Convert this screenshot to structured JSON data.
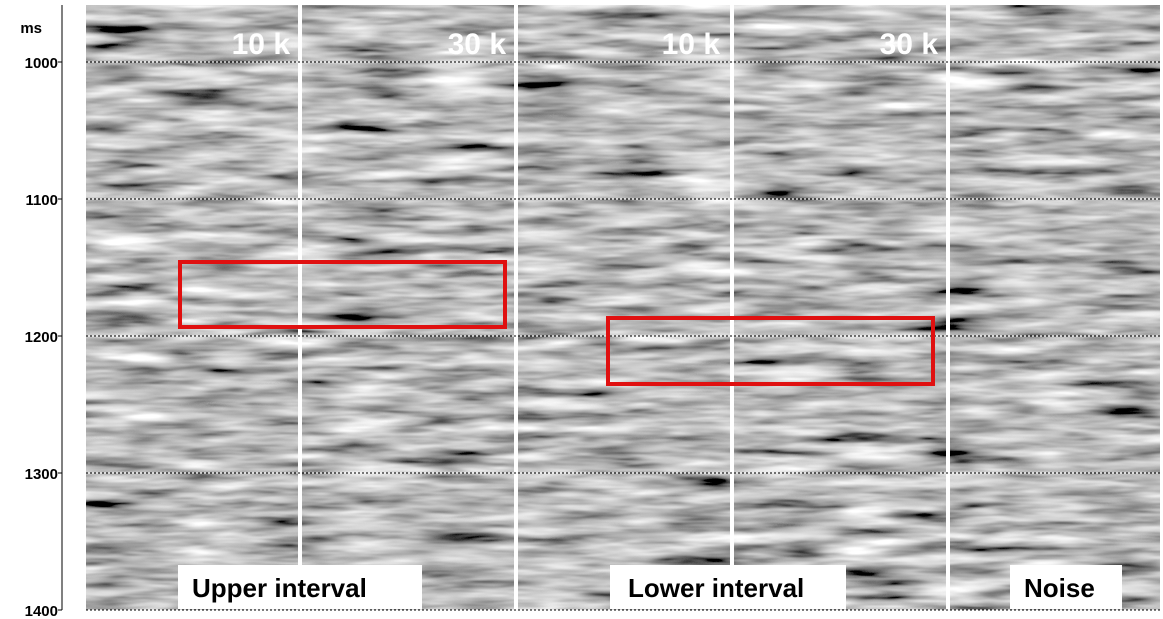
{
  "axis": {
    "unit": "ms",
    "ticks": [
      1000,
      1100,
      1200,
      1300,
      1400
    ]
  },
  "panels": {
    "top_labels": [
      "10 k",
      "30 k",
      "10 k",
      "30 k"
    ],
    "bottom_labels": [
      "Upper interval",
      "Lower interval",
      "Noise"
    ]
  }
}
